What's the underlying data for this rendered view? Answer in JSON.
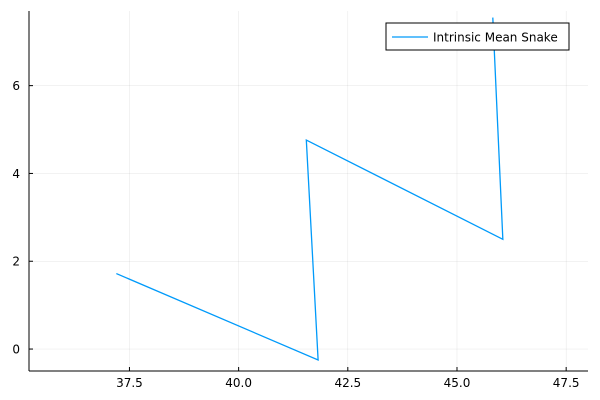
{
  "chart_data": {
    "type": "line",
    "title": "",
    "xlabel": "",
    "ylabel": "",
    "xlim": [
      35.2,
      48.0
    ],
    "ylim": [
      -0.5,
      7.7
    ],
    "xticks": [
      37.5,
      40.0,
      42.5,
      45.0,
      47.5
    ],
    "xtick_labels": [
      "37.5",
      "40.0",
      "42.5",
      "45.0",
      "47.5"
    ],
    "yticks": [
      0,
      2,
      4,
      6
    ],
    "ytick_labels": [
      "0",
      "2",
      "4",
      "6"
    ],
    "grid": true,
    "legend_position": "top-right",
    "series": [
      {
        "name": "Intrinsic Mean Snake",
        "color": "#009AFA",
        "x": [
          37.2,
          41.82,
          41.55,
          46.05,
          45.82
        ],
        "y": [
          1.72,
          -0.25,
          4.76,
          2.5,
          7.55
        ]
      }
    ]
  }
}
